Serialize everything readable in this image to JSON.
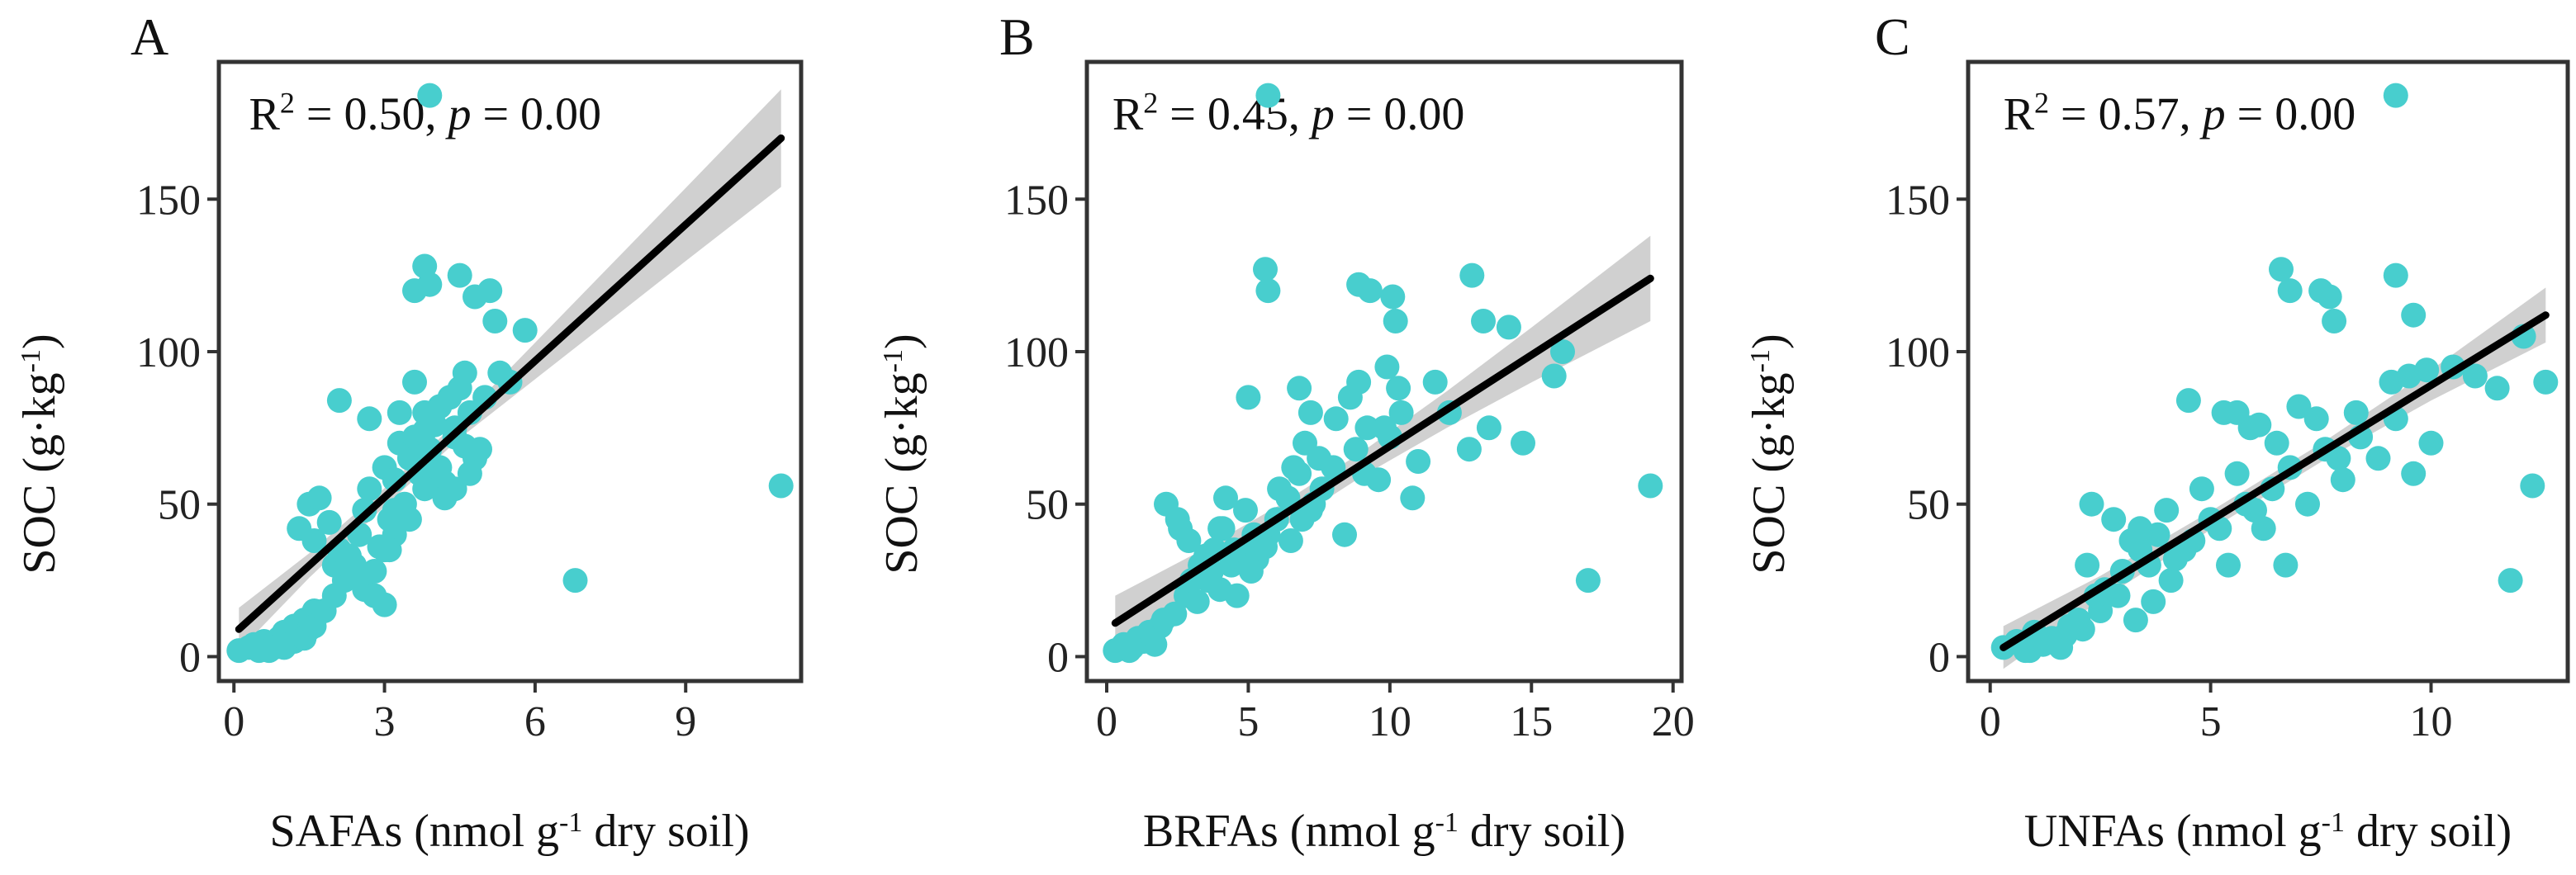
{
  "colors": {
    "points": "#48CECE",
    "fit_line": "#000000",
    "ci_band": "#D0D0D0"
  },
  "chart_data": [
    {
      "type": "scatter",
      "panel_label": "A",
      "xlabel": "SAFAs (nmol g-1 dry soil)",
      "xlabel_main": "SAFAs (nmol g",
      "xlabel_sup": "-1",
      "xlabel_tail": " dry soil)",
      "ylabel": "SOC (g·kg-1)",
      "ylabel_main": "SOC (g·kg",
      "ylabel_sup": "-1",
      "ylabel_tail": ")",
      "xlim": [
        -0.3,
        11.3
      ],
      "ylim": [
        -8,
        195
      ],
      "xticks": [
        0,
        3,
        6,
        9
      ],
      "xtick_labels": [
        "0",
        "3",
        "6",
        "9"
      ],
      "yticks": [
        0,
        50,
        100,
        150
      ],
      "ytick_labels": [
        "0",
        "50",
        "100",
        "150"
      ],
      "annotation": {
        "r2_label": "R",
        "r2_sup": "2",
        "r2_value": " = 0.50,  ",
        "p_label": "p",
        "p_value": " = 0.00",
        "x": 0.3,
        "y": 173
      },
      "fit": {
        "x": [
          0.1,
          10.9
        ],
        "y": [
          9,
          170
        ]
      },
      "ci": {
        "x": [
          0.1,
          1.5,
          3.0,
          4.5,
          6.0,
          7.5,
          9.0,
          10.9
        ],
        "half_width": [
          7,
          4,
          3,
          3,
          6,
          9,
          12,
          16
        ]
      },
      "x": [
        0.1,
        0.3,
        0.4,
        0.5,
        0.6,
        0.7,
        0.8,
        0.9,
        1.0,
        1.0,
        1.1,
        1.2,
        1.3,
        1.4,
        1.5,
        1.6,
        0.5,
        0.8,
        1.0,
        1.2,
        1.4,
        1.6,
        1.8,
        2.0,
        2.2,
        2.4,
        2.6,
        2.8,
        3.0,
        3.2,
        3.5,
        1.3,
        1.5,
        1.6,
        1.7,
        1.9,
        2.0,
        2.1,
        2.3,
        2.4,
        2.5,
        2.6,
        2.7,
        2.9,
        3.0,
        3.1,
        3.2,
        3.3,
        3.4,
        3.5,
        3.6,
        3.7,
        3.8,
        3.9,
        4.0,
        4.1,
        4.2,
        4.3,
        4.4,
        4.5,
        4.6,
        4.7,
        4.8,
        2.1,
        2.7,
        3.3,
        3.6,
        3.8,
        4.0,
        4.2,
        4.4,
        4.6,
        4.9,
        5.2,
        5.5,
        5.8,
        3.6,
        3.8,
        3.9,
        4.5,
        4.8,
        5.1,
        3.0,
        3.2,
        3.8,
        6.8,
        10.9,
        2.8,
        3.1,
        4.1,
        4.4,
        4.7,
        5.0,
        5.3
      ],
      "y": [
        2,
        3,
        4,
        3,
        5,
        2,
        4,
        6,
        3,
        8,
        5,
        10,
        7,
        12,
        9,
        15,
        2,
        3,
        4,
        5,
        6,
        10,
        15,
        20,
        25,
        30,
        22,
        28,
        35,
        40,
        45,
        42,
        50,
        38,
        52,
        44,
        30,
        35,
        33,
        28,
        40,
        48,
        55,
        36,
        62,
        45,
        58,
        70,
        50,
        65,
        72,
        60,
        80,
        68,
        76,
        82,
        57,
        85,
        72,
        88,
        93,
        80,
        65,
        84,
        78,
        80,
        90,
        74,
        60,
        52,
        55,
        69,
        68,
        110,
        90,
        107,
        120,
        128,
        122,
        125,
        118,
        120,
        17,
        48,
        55,
        25,
        56,
        20,
        35,
        62,
        75,
        60,
        85,
        93
      ],
      "highlight": {
        "x": [
          3.9
        ],
        "y": [
          184
        ]
      }
    },
    {
      "type": "scatter",
      "panel_label": "B",
      "xlabel": "BRFAs (nmol g-1 dry soil)",
      "xlabel_main": "BRFAs (nmol g",
      "xlabel_sup": "-1",
      "xlabel_tail": " dry soil)",
      "ylabel": "SOC (g·kg-1)",
      "ylabel_main": "SOC (g·kg",
      "ylabel_sup": "-1",
      "ylabel_tail": ")",
      "xlim": [
        -0.7,
        20.3
      ],
      "ylim": [
        -8,
        195
      ],
      "xticks": [
        0,
        5,
        10,
        15,
        20
      ],
      "xtick_labels": [
        "0",
        "5",
        "10",
        "15",
        "20"
      ],
      "yticks": [
        0,
        50,
        100,
        150
      ],
      "ytick_labels": [
        "0",
        "50",
        "100",
        "150"
      ],
      "annotation": {
        "r2_label": "R",
        "r2_sup": "2",
        "r2_value": " = 0.45,  ",
        "p_label": "p",
        "p_value": " = 0.00",
        "x": 0.2,
        "y": 173
      },
      "fit": {
        "x": [
          0.3,
          19.2
        ],
        "y": [
          11,
          124
        ]
      },
      "ci": {
        "x": [
          0.3,
          3.0,
          6.0,
          9.0,
          12.0,
          15.0,
          19.2
        ],
        "half_width": [
          9,
          6,
          4,
          4,
          6,
          9,
          14
        ]
      },
      "x": [
        0.3,
        0.6,
        0.9,
        1.1,
        1.3,
        1.5,
        1.7,
        1.9,
        0.8,
        1.2,
        1.6,
        2.0,
        2.4,
        2.8,
        3.2,
        3.6,
        4.0,
        4.4,
        4.8,
        5.2,
        2.5,
        2.9,
        3.3,
        3.7,
        4.1,
        4.5,
        4.9,
        5.3,
        5.7,
        6.1,
        6.5,
        6.9,
        7.3,
        3.0,
        3.5,
        4.0,
        4.6,
        5.1,
        5.6,
        6.0,
        6.4,
        6.8,
        7.2,
        7.6,
        8.0,
        8.4,
        8.8,
        9.2,
        9.6,
        10.0,
        10.4,
        10.8,
        6.6,
        7.0,
        7.5,
        8.1,
        8.6,
        9.1,
        9.8,
        10.3,
        11.0,
        11.6,
        12.1,
        12.8,
        13.5,
        14.2,
        14.7,
        15.8,
        16.1,
        2.1,
        2.6,
        3.8,
        4.2,
        5.0,
        6.8,
        7.2,
        8.9,
        9.9,
        10.2,
        12.9,
        13.3,
        5.6,
        5.7,
        9.3,
        8.9,
        10.1,
        17.0,
        19.2
      ],
      "y": [
        2,
        4,
        3,
        6,
        5,
        8,
        4,
        10,
        2,
        5,
        7,
        12,
        14,
        20,
        18,
        25,
        22,
        30,
        35,
        40,
        45,
        38,
        30,
        28,
        42,
        35,
        48,
        32,
        40,
        55,
        38,
        45,
        50,
        25,
        33,
        42,
        20,
        28,
        36,
        45,
        52,
        60,
        48,
        55,
        62,
        40,
        68,
        75,
        58,
        72,
        80,
        52,
        62,
        70,
        65,
        78,
        85,
        60,
        75,
        88,
        64,
        90,
        80,
        68,
        75,
        108,
        70,
        92,
        100,
        50,
        42,
        35,
        52,
        85,
        88,
        80,
        90,
        95,
        110,
        125,
        110,
        127,
        120,
        120,
        122,
        118,
        25,
        56
      ],
      "highlight": {
        "x": [
          5.7
        ],
        "y": [
          184
        ]
      }
    },
    {
      "type": "scatter",
      "panel_label": "C",
      "xlabel": "UNFAs (nmol g-1 dry soil)",
      "xlabel_main": "UNFAs (nmol g",
      "xlabel_sup": "-1",
      "xlabel_tail": " dry soil)",
      "ylabel": "SOC (g·kg-1)",
      "ylabel_main": "SOC (g·kg",
      "ylabel_sup": "-1",
      "ylabel_tail": ")",
      "xlim": [
        -0.5,
        13.1
      ],
      "ylim": [
        -8,
        195
      ],
      "xticks": [
        0,
        5,
        10
      ],
      "xtick_labels": [
        "0",
        "5",
        "10"
      ],
      "yticks": [
        0,
        50,
        100,
        150
      ],
      "ytick_labels": [
        "0",
        "50",
        "100",
        "150"
      ],
      "annotation": {
        "r2_label": "R",
        "r2_sup": "2",
        "r2_value": " = 0.57,  ",
        "p_label": "p",
        "p_value": " = 0.00",
        "x": 0.3,
        "y": 173
      },
      "fit": {
        "x": [
          0.3,
          12.6
        ],
        "y": [
          3,
          112
        ]
      },
      "ci": {
        "x": [
          0.3,
          2.5,
          5.0,
          7.5,
          10.0,
          12.6
        ],
        "half_width": [
          7,
          4,
          3,
          3,
          5,
          9
        ]
      },
      "x": [
        0.3,
        0.6,
        0.8,
        1.0,
        1.2,
        1.4,
        1.6,
        1.8,
        2.0,
        0.9,
        1.3,
        1.7,
        2.1,
        2.5,
        2.9,
        3.3,
        3.7,
        4.1,
        2.2,
        2.6,
        3.0,
        3.4,
        3.8,
        4.2,
        4.6,
        5.0,
        5.4,
        5.8,
        6.2,
        2.4,
        2.8,
        3.2,
        3.6,
        4.0,
        4.4,
        4.8,
        5.2,
        5.6,
        6.0,
        6.4,
        6.8,
        7.2,
        7.6,
        8.0,
        8.4,
        8.8,
        9.2,
        9.6,
        10.0,
        4.5,
        5.3,
        5.9,
        6.5,
        7.0,
        7.4,
        7.9,
        8.3,
        9.1,
        9.5,
        9.9,
        10.5,
        11.0,
        11.5,
        12.1,
        12.6,
        6.6,
        6.8,
        7.5,
        7.7,
        7.8,
        9.2,
        9.6,
        11.8,
        12.3,
        2.3,
        3.4,
        5.6,
        6.1,
        6.7
      ],
      "y": [
        3,
        5,
        2,
        8,
        4,
        6,
        3,
        10,
        12,
        2,
        5,
        7,
        9,
        15,
        20,
        12,
        18,
        25,
        30,
        22,
        28,
        35,
        40,
        32,
        38,
        45,
        30,
        50,
        42,
        20,
        45,
        38,
        30,
        48,
        35,
        55,
        42,
        60,
        48,
        55,
        62,
        50,
        68,
        58,
        72,
        65,
        78,
        60,
        70,
        84,
        80,
        75,
        70,
        82,
        78,
        65,
        80,
        90,
        92,
        94,
        95,
        92,
        88,
        105,
        90,
        127,
        120,
        120,
        118,
        110,
        125,
        112,
        25,
        56,
        50,
        42,
        80,
        76,
        30
      ],
      "highlight": {
        "x": [
          9.2
        ],
        "y": [
          184
        ]
      }
    }
  ]
}
